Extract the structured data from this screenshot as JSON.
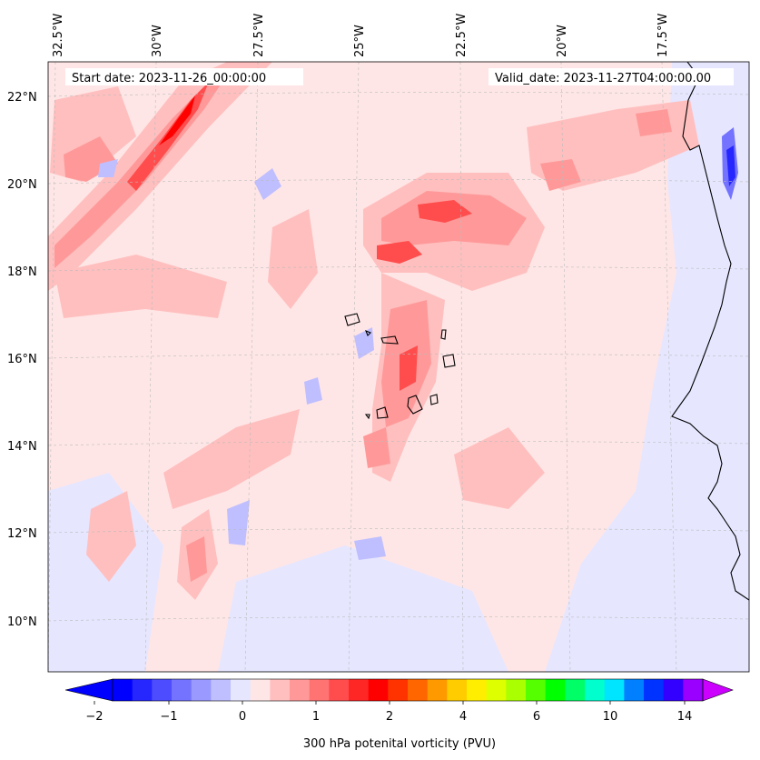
{
  "map": {
    "top_labels": [
      "32.5°W",
      "30°W",
      "27.5°W",
      "25°W",
      "22.5°W",
      "20°W",
      "17.5°W"
    ],
    "left_labels": [
      "22°N",
      "20°N",
      "18°N",
      "16°N",
      "14°N",
      "12°N",
      "10°N"
    ],
    "start_date": "Start date: 2023-11-26_00:00:00",
    "valid_date": "Valid_date: 2023-11-27T04:00:00.00"
  },
  "colorbar": {
    "tick_labels": [
      "−2",
      "−1",
      "0",
      "1",
      "2",
      "4",
      "6",
      "10",
      "14"
    ],
    "label": "300 hPa potenital vorticity (PVU)",
    "colors": [
      "#0000ff",
      "#2626ff",
      "#4d4dff",
      "#7373ff",
      "#9999ff",
      "#bfbfff",
      "#e6e6ff",
      "#ffe6e6",
      "#ffbfbf",
      "#ff9999",
      "#ff7373",
      "#ff4d4d",
      "#ff2626",
      "#ff0000",
      "#ff3300",
      "#ff6600",
      "#ff9900",
      "#ffcc00",
      "#ffee00",
      "#ddff00",
      "#aaff00",
      "#55ff00",
      "#00ff00",
      "#00ff66",
      "#00ffcc",
      "#00e5ff",
      "#0080ff",
      "#0033ff",
      "#3300ff",
      "#9900ff"
    ],
    "under_color": "#0000ff",
    "over_color": "#cc00ff"
  }
}
